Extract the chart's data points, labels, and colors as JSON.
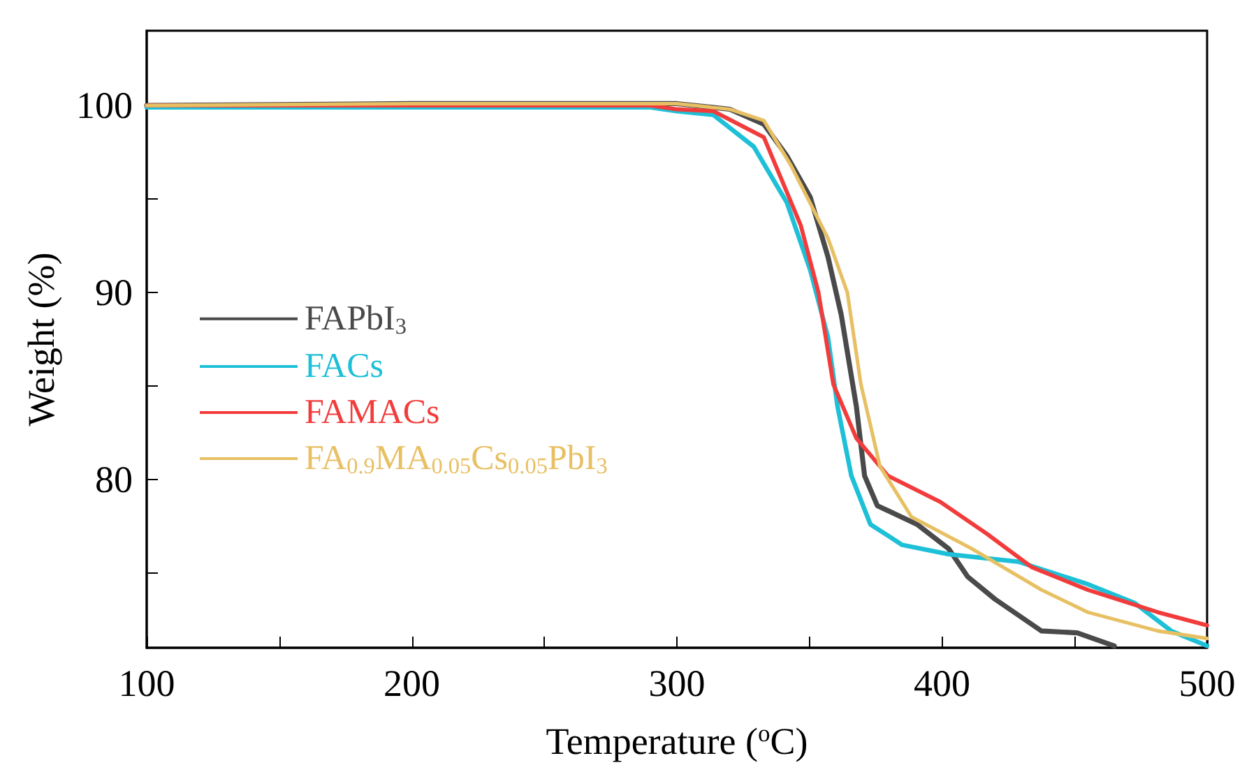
{
  "chart_data": {
    "type": "line",
    "xlabel": "Temperature ($^{o}$C)",
    "ylabel": "Weight (%)",
    "xlim": [
      100,
      500
    ],
    "ylim": [
      71,
      104
    ],
    "xticks": [
      100,
      {
        "value": 150,
        "label": null
      },
      200,
      {
        "value": 250,
        "label": null
      },
      300,
      {
        "value": 350,
        "label": null
      },
      400,
      {
        "value": 450,
        "label": null
      },
      500
    ],
    "yticks": [
      {
        "value": 75,
        "label": null
      },
      80,
      {
        "value": 85,
        "label": null
      },
      90,
      {
        "value": 95,
        "label": null
      },
      100
    ],
    "grid": false,
    "legend": "left",
    "marker": "none",
    "line_style": "solid",
    "series": [
      {
        "name": "FAPbI$_{3}$",
        "color": "#4a4a4a",
        "x": [
          100,
          200,
          300,
          320,
          332.8,
          341.5,
          350.3,
          357,
          362,
          367.7,
          370.8,
          375.6,
          390.6,
          402.5,
          409.7,
          420,
          437.5,
          451,
          465
        ],
        "values": [
          100,
          100.1,
          100.1,
          99.8,
          99.0,
          97.3,
          95.1,
          91.9,
          88.8,
          83.9,
          80.2,
          78.6,
          77.6,
          76.3,
          74.8,
          73.6,
          71.9,
          71.8,
          71.1
        ]
      },
      {
        "name": "FACs",
        "color": "#1ec0d8",
        "x": [
          100,
          200,
          290,
          300,
          313.7,
          329,
          341.5,
          350.3,
          357,
          360.6,
          365.8,
          373,
          385,
          402.5,
          428.8,
          455,
          472.6,
          486.5,
          500
        ],
        "values": [
          99.9,
          99.9,
          99.9,
          99.7,
          99.5,
          97.8,
          94.8,
          91.2,
          87.6,
          83.9,
          80.2,
          77.6,
          76.5,
          76.0,
          75.6,
          74.4,
          73.4,
          71.9,
          71.1
        ]
      },
      {
        "name": "FAMACs",
        "color": "#f23c3c",
        "x": [
          100,
          200,
          290,
          300,
          313.7,
          332.8,
          346.7,
          353.4,
          359,
          367.7,
          379.6,
          399.4,
          416.9,
          434,
          455,
          481.4,
          500
        ],
        "values": [
          100,
          100,
          100,
          99.8,
          99.7,
          98.3,
          93.6,
          90,
          85.1,
          82.2,
          80.2,
          78.8,
          77.1,
          75.3,
          74.1,
          72.9,
          72.2
        ]
      },
      {
        "name": "FA$_{0.9}$MA$_{0.05}$Cs$_{0.05}$PbI$_{3}$",
        "color": "#e8c064",
        "x": [
          100,
          200,
          300,
          320,
          332.8,
          343,
          357,
          364.3,
          369.4,
          376.6,
          388.5,
          411.2,
          437.5,
          455,
          481.4,
          500
        ],
        "values": [
          100,
          100.1,
          100.1,
          99.8,
          99.2,
          96.8,
          92.9,
          90,
          85.1,
          80.7,
          78,
          76.3,
          74.1,
          72.9,
          71.9,
          71.5
        ]
      }
    ]
  }
}
